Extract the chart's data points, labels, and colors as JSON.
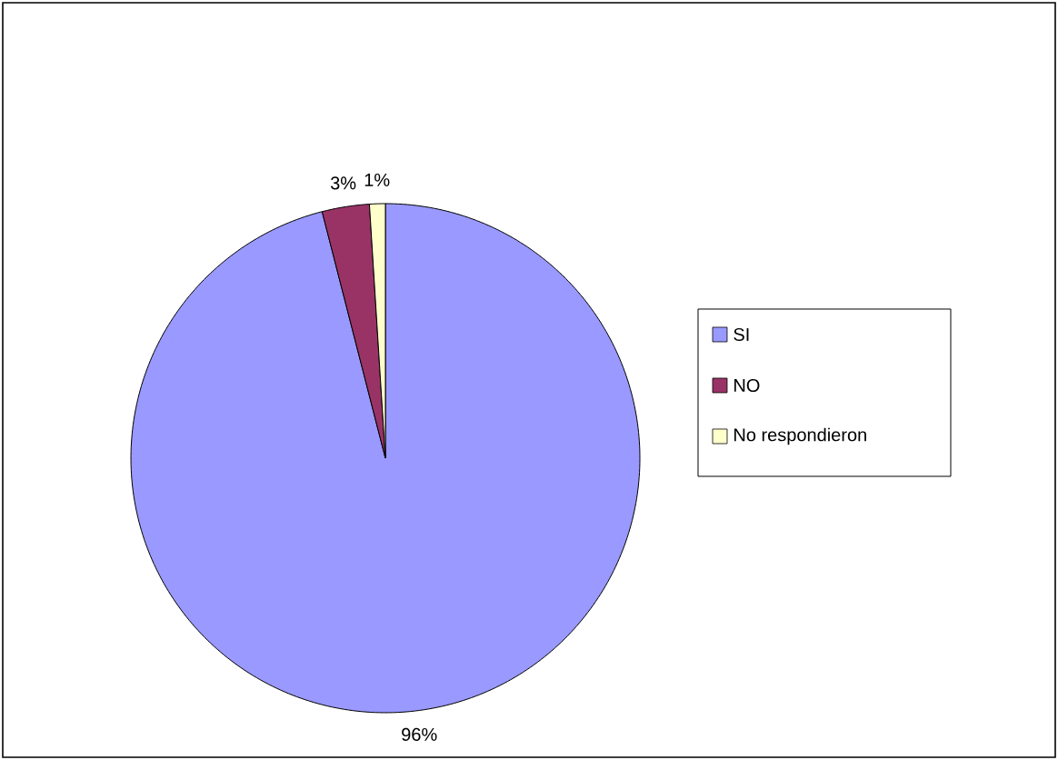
{
  "chart_data": {
    "type": "pie",
    "categories": [
      "SI",
      "NO",
      "No respondieron"
    ],
    "values": [
      96,
      3,
      1
    ],
    "value_labels": [
      "96%",
      "3%",
      "1%"
    ],
    "colors": [
      "#9999ff",
      "#993366",
      "#ffffcc"
    ],
    "legend": "right"
  }
}
